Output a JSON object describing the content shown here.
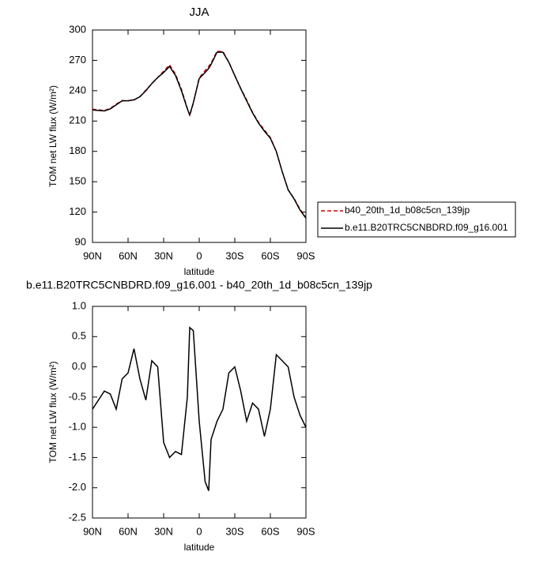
{
  "chart_data": [
    {
      "type": "line",
      "title": "JJA",
      "xlabel": "latitude",
      "ylabel": "TOM net LW flux (W/m²)",
      "x": [
        90,
        85,
        80,
        75,
        70,
        65,
        60,
        55,
        50,
        45,
        40,
        35,
        30,
        25,
        20,
        15,
        10,
        8,
        5,
        0,
        -5,
        -8,
        -10,
        -15,
        -20,
        -25,
        -30,
        -35,
        -40,
        -45,
        -50,
        -55,
        -60,
        -65,
        -70,
        -75,
        -80,
        -85,
        -90
      ],
      "xlim": [
        90,
        -90
      ],
      "xticks": [
        {
          "value": 90,
          "label": "90N"
        },
        {
          "value": 60,
          "label": "60N"
        },
        {
          "value": 30,
          "label": "30N"
        },
        0,
        {
          "value": -30,
          "label": "30S"
        },
        {
          "value": -60,
          "label": "60S"
        },
        {
          "value": -90,
          "label": "90S"
        }
      ],
      "ylim": [
        90,
        300
      ],
      "yticks": [
        90,
        120,
        150,
        180,
        210,
        240,
        270,
        300
      ],
      "legend": "right",
      "series": [
        {
          "name": "b40_20th_1d_b08c5cn_139jp",
          "color": "#cc0000",
          "dashed": true,
          "values": [
            221.7,
            221.05,
            220.4,
            222.45,
            226.7,
            230.2,
            230.1,
            230.7,
            234.2,
            240.55,
            246.9,
            253,
            259.25,
            265.5,
            256.4,
            241.45,
            222.5,
            215.35,
            227.4,
            252.9,
            259.9,
            264.05,
            267.2,
            278.9,
            278.7,
            268.1,
            255,
            242.4,
            230.9,
            218.6,
            208.7,
            201.15,
            193.7,
            179.8,
            159.9,
            142,
            133.5,
            122.8,
            115
          ]
        },
        {
          "name": "b.e11.B20TRC5CNBDRD.f09_g16.001",
          "color": "#000000",
          "dashed": false,
          "values": [
            221,
            220.5,
            220,
            222,
            226,
            230,
            230,
            231,
            234,
            240,
            247,
            253,
            258,
            264,
            255,
            240,
            222,
            216,
            228,
            252,
            258,
            262,
            266,
            278,
            278,
            268,
            255,
            242,
            230,
            218,
            208,
            200,
            193,
            180,
            160,
            142,
            133,
            122,
            114
          ]
        }
      ]
    },
    {
      "type": "line",
      "title": "b.e11.B20TRC5CNBDRD.f09_g16.001 - b40_20th_1d_b08c5cn_139jp",
      "xlabel": "latitude",
      "ylabel": "TOM net LW flux (W/m²)",
      "x": [
        90,
        85,
        80,
        75,
        70,
        65,
        60,
        55,
        50,
        45,
        40,
        35,
        30,
        25,
        20,
        15,
        10,
        8,
        5,
        0,
        -5,
        -8,
        -10,
        -15,
        -20,
        -25,
        -30,
        -35,
        -40,
        -45,
        -50,
        -55,
        -60,
        -65,
        -70,
        -75,
        -80,
        -85,
        -90
      ],
      "xlim": [
        90,
        -90
      ],
      "xticks": [
        {
          "value": 90,
          "label": "90N"
        },
        {
          "value": 60,
          "label": "60N"
        },
        {
          "value": 30,
          "label": "30N"
        },
        0,
        {
          "value": -30,
          "label": "30S"
        },
        {
          "value": -60,
          "label": "60S"
        },
        {
          "value": -90,
          "label": "90S"
        }
      ],
      "ylim": [
        -2.5,
        1
      ],
      "yticks": [
        -2.5,
        {
          "value": -2,
          "label": "-2.0"
        },
        -1.5,
        {
          "value": -1,
          "label": "-1.0"
        },
        -0.5,
        {
          "value": 0,
          "label": "0.0"
        },
        0.5,
        {
          "value": 1,
          "label": "1.0"
        }
      ],
      "series": [
        {
          "color": "#000000",
          "dashed": false,
          "values": [
            -0.7,
            -0.55,
            -0.4,
            -0.45,
            -0.7,
            -0.2,
            -0.1,
            0.3,
            -0.2,
            -0.55,
            0.1,
            0.0,
            -1.25,
            -1.5,
            -1.4,
            -1.45,
            -0.5,
            0.65,
            0.6,
            -0.9,
            -1.9,
            -2.05,
            -1.2,
            -0.9,
            -0.7,
            -0.1,
            0.0,
            -0.4,
            -0.9,
            -0.6,
            -0.7,
            -1.15,
            -0.7,
            0.2,
            0.1,
            0.0,
            -0.5,
            -0.8,
            -1.0
          ]
        }
      ]
    }
  ]
}
